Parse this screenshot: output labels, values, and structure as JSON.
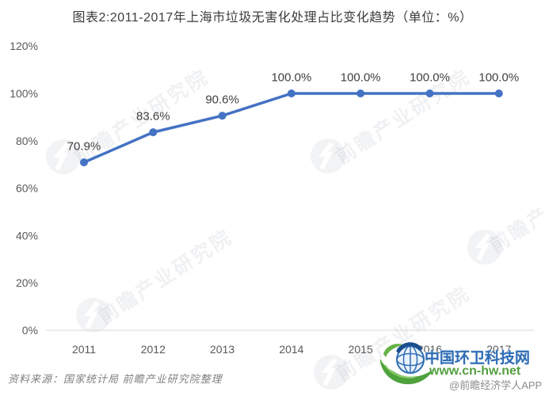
{
  "title": "图表2:2011-2017年上海市垃圾无害化处理占比变化趋势（单位：%）",
  "chart_data": {
    "type": "line",
    "title": "图表2:2011-2017年上海市垃圾无害化处理占比变化趋势（单位：%）",
    "categories": [
      "2011",
      "2012",
      "2013",
      "2014",
      "2015",
      "2016",
      "2017"
    ],
    "series": [
      {
        "name": "上海市垃圾无害化处理占比",
        "values": [
          70.9,
          83.6,
          90.6,
          100.0,
          100.0,
          100.0,
          100.0
        ]
      }
    ],
    "data_labels": [
      "70.9%",
      "83.6%",
      "90.6%",
      "100.0%",
      "100.0%",
      "100.0%",
      "100.0%"
    ],
    "yticks_labels": [
      "0%",
      "20%",
      "40%",
      "60%",
      "80%",
      "100%",
      "120%"
    ],
    "yticks_values": [
      0,
      20,
      40,
      60,
      80,
      100,
      120
    ],
    "ylim": [
      0,
      120
    ],
    "xlabel": "",
    "ylabel": "",
    "grid": false,
    "legend": "none",
    "line_color": "#4472c4",
    "marker_color": "#4472c4",
    "label_color": "#404040",
    "tick_color": "#595959",
    "axis_color": "#d9d9d9"
  },
  "watermark": {
    "text": "前瞻产业研究院"
  },
  "source_note": "资料来源：国家统计局 前瞻产业研究院整理",
  "footer_logo": {
    "site_name": "中国环卫科技网",
    "site_url": "www.cn-hw.net",
    "credit": "@前瞻经济学人APP",
    "site_name_color": "#2e6cb5",
    "site_url_color": "#54a041",
    "credit_color": "#8c8c8c"
  }
}
